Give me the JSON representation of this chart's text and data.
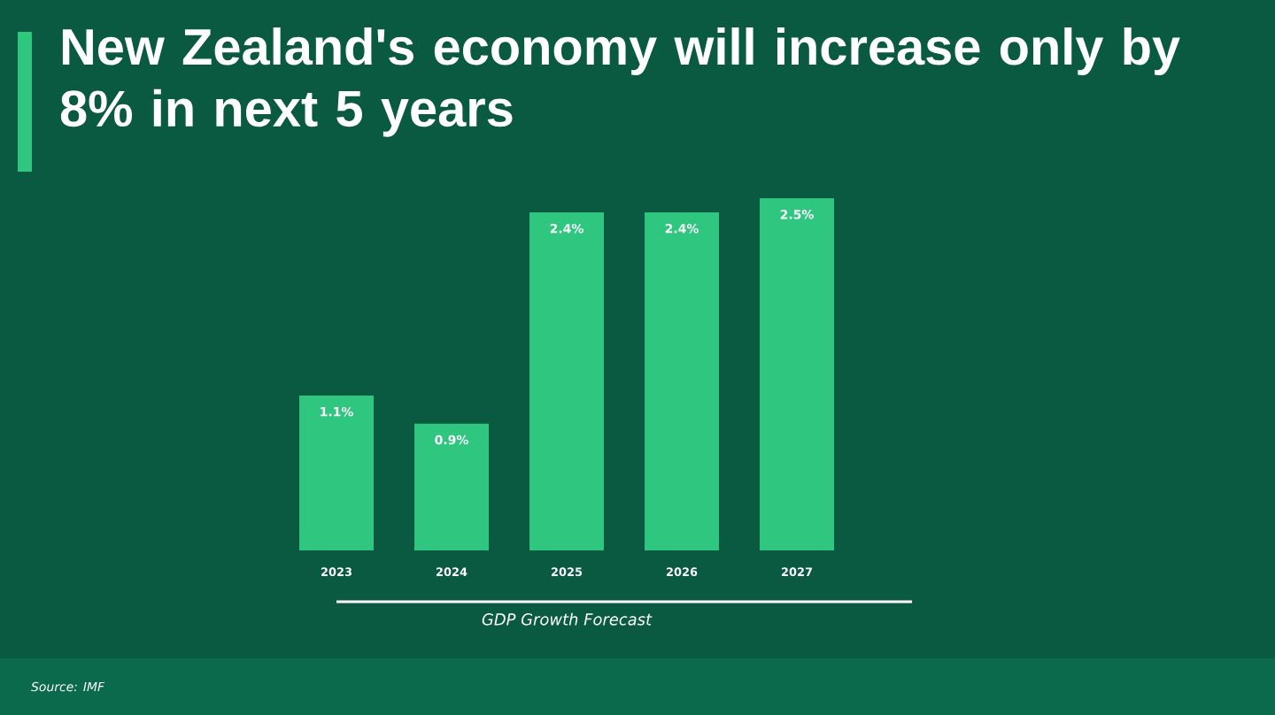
{
  "chart_data": {
    "type": "bar",
    "title": "New Zealand's economy will increase only by 8% in next 5 years",
    "xlabel": "GDP Growth Forecast",
    "categories": [
      "2023",
      "2024",
      "2025",
      "2026",
      "2027"
    ],
    "values": [
      1.1,
      0.9,
      2.4,
      2.4,
      2.5
    ],
    "value_labels": [
      "1.1%",
      "0.9%",
      "2.4%",
      "2.4%",
      "2.5%"
    ],
    "color": "#2fc77f",
    "annotations": [
      "Source: IMF"
    ]
  }
}
